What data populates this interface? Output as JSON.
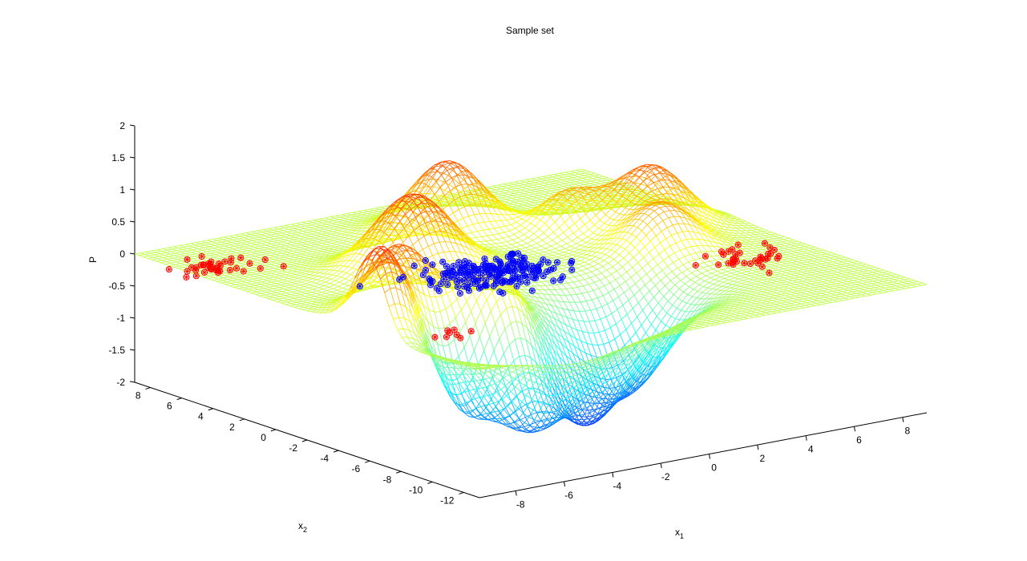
{
  "chart_data": {
    "type": "surface",
    "title": "Sample set",
    "xlabel": "x",
    "xlabel_sub": "1",
    "ylabel": "x",
    "ylabel_sub": "2",
    "zlabel": "P",
    "xlim": [
      -9.5,
      9
    ],
    "ylim": [
      -13,
      9
    ],
    "zlim": [
      -2,
      2
    ],
    "x_ticks": [
      "-8",
      "-6",
      "-4",
      "-2",
      "0",
      "2",
      "4",
      "6",
      "8"
    ],
    "x_tick_values": [
      -8,
      -6,
      -4,
      -2,
      0,
      2,
      4,
      6,
      8
    ],
    "y_ticks": [
      "8",
      "6",
      "4",
      "2",
      "0",
      "-2",
      "-4",
      "-6",
      "-8",
      "-10",
      "-12"
    ],
    "y_tick_values": [
      8,
      6,
      4,
      2,
      0,
      -2,
      -4,
      -6,
      -8,
      -10,
      -12
    ],
    "z_ticks": [
      "2",
      "1.5",
      "1",
      "0.5",
      "0",
      "-0.5",
      "-1",
      "-1.5",
      "-2"
    ],
    "z_tick_values": [
      2,
      1.5,
      1,
      0.5,
      0,
      -0.5,
      -1,
      -1.5,
      -2
    ],
    "colormap": "jet",
    "grid": false,
    "surface_peaks": [
      {
        "x": -9.0,
        "y": -6.0,
        "height": 1.3,
        "width": 1.0
      },
      {
        "x": -7.0,
        "y": -4.0,
        "height": 1.0,
        "width": 1.1
      },
      {
        "x": -3.5,
        "y": 0.5,
        "height": 1.2,
        "width": 1.4
      },
      {
        "x": 0.5,
        "y": 4.5,
        "height": 1.1,
        "width": 1.3
      },
      {
        "x": -4.5,
        "y": -7.0,
        "height": 1.1,
        "width": 1.4
      },
      {
        "x": 4.5,
        "y": -3.0,
        "height": 0.7,
        "width": 1.2
      },
      {
        "x": 6.0,
        "y": 0.0,
        "height": 1.0,
        "width": 1.3
      },
      {
        "x": 3.5,
        "y": 1.5,
        "height": 0.6,
        "width": 1.0
      }
    ],
    "surface_valleys": [
      {
        "x": -5.5,
        "y": -10.0,
        "depth": 1.4,
        "width": 1.5
      },
      {
        "x": -2.5,
        "y": -8.5,
        "depth": 1.7,
        "width": 1.5
      },
      {
        "x": 0.5,
        "y": -7.0,
        "depth": 1.4,
        "width": 1.5
      },
      {
        "x": -6.5,
        "y": -7.5,
        "depth": 1.3,
        "width": 1.1
      }
    ],
    "series": [
      {
        "name": "",
        "color": "#0000ff",
        "marker": "asterisk-circle",
        "cluster_center": [
          -1.5,
          -1.5
        ],
        "spread": [
          2.2,
          2.0
        ],
        "count": 190
      },
      {
        "name": "",
        "color": "#ff0000",
        "marker": "asterisk-circle",
        "cluster_center": [
          -8.5,
          5.5
        ],
        "spread": [
          1.2,
          1.2
        ],
        "count": 40
      },
      {
        "name": "",
        "color": "#ff0000",
        "marker": "asterisk-circle",
        "cluster_center": [
          6.5,
          -5.5
        ],
        "spread": [
          1.2,
          1.2
        ],
        "count": 35
      },
      {
        "name": "",
        "color": "#ff0000",
        "marker": "asterisk-circle",
        "cluster_center": [
          -7.5,
          -8.0
        ],
        "spread": [
          1.0,
          1.0
        ],
        "count": 8
      }
    ]
  }
}
